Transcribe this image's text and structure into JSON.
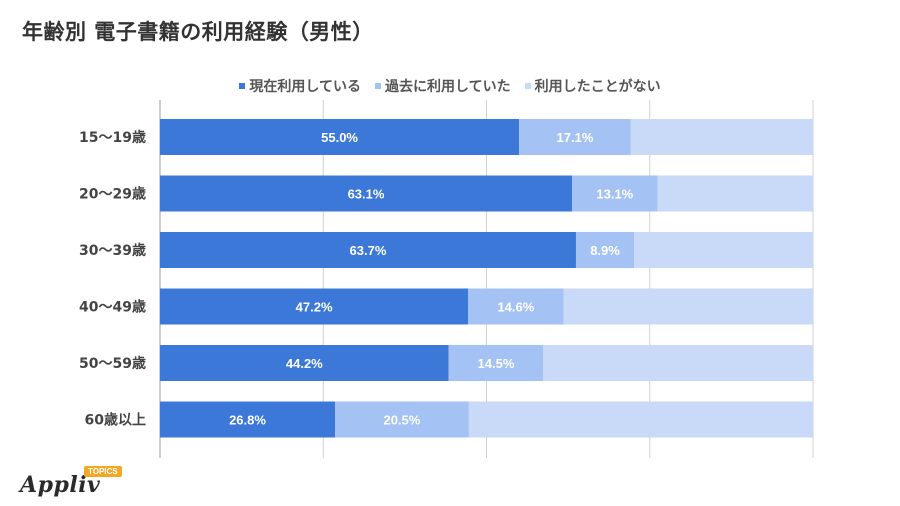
{
  "title": "年齢別 電子書籍の利用経験（男性）",
  "colors": {
    "current": "#3b78d8",
    "past": "#a4c2f4",
    "never": "#c9daf8",
    "grid": "#d0d0d0",
    "axis_text": "#444444",
    "label_text": "#ffffff"
  },
  "brand": {
    "name": "Appliv",
    "badge": "TOPICS"
  },
  "chart_data": {
    "type": "bar",
    "orientation": "horizontal",
    "stacked": true,
    "title": "年齢別 電子書籍の利用経験（男性）",
    "categories": [
      "15〜19歳",
      "20〜29歳",
      "30〜39歳",
      "40〜49歳",
      "50〜59歳",
      "60歳以上"
    ],
    "series": [
      {
        "name": "現在利用している",
        "values": [
          55.0,
          63.1,
          63.7,
          47.2,
          44.2,
          26.8
        ],
        "labels": [
          "55.0%",
          "63.1%",
          "63.7%",
          "47.2%",
          "44.2%",
          "26.8%"
        ]
      },
      {
        "name": "過去に利用していた",
        "values": [
          17.1,
          13.1,
          8.9,
          14.6,
          14.5,
          20.5
        ],
        "labels": [
          "17.1%",
          "13.1%",
          "8.9%",
          "14.6%",
          "14.5%",
          "20.5%"
        ]
      },
      {
        "name": "利用したことがない",
        "values": [
          27.9,
          23.8,
          27.4,
          38.2,
          41.3,
          52.7
        ]
      }
    ],
    "xlim": [
      0,
      100
    ],
    "grid": true,
    "legend_position": "top"
  }
}
